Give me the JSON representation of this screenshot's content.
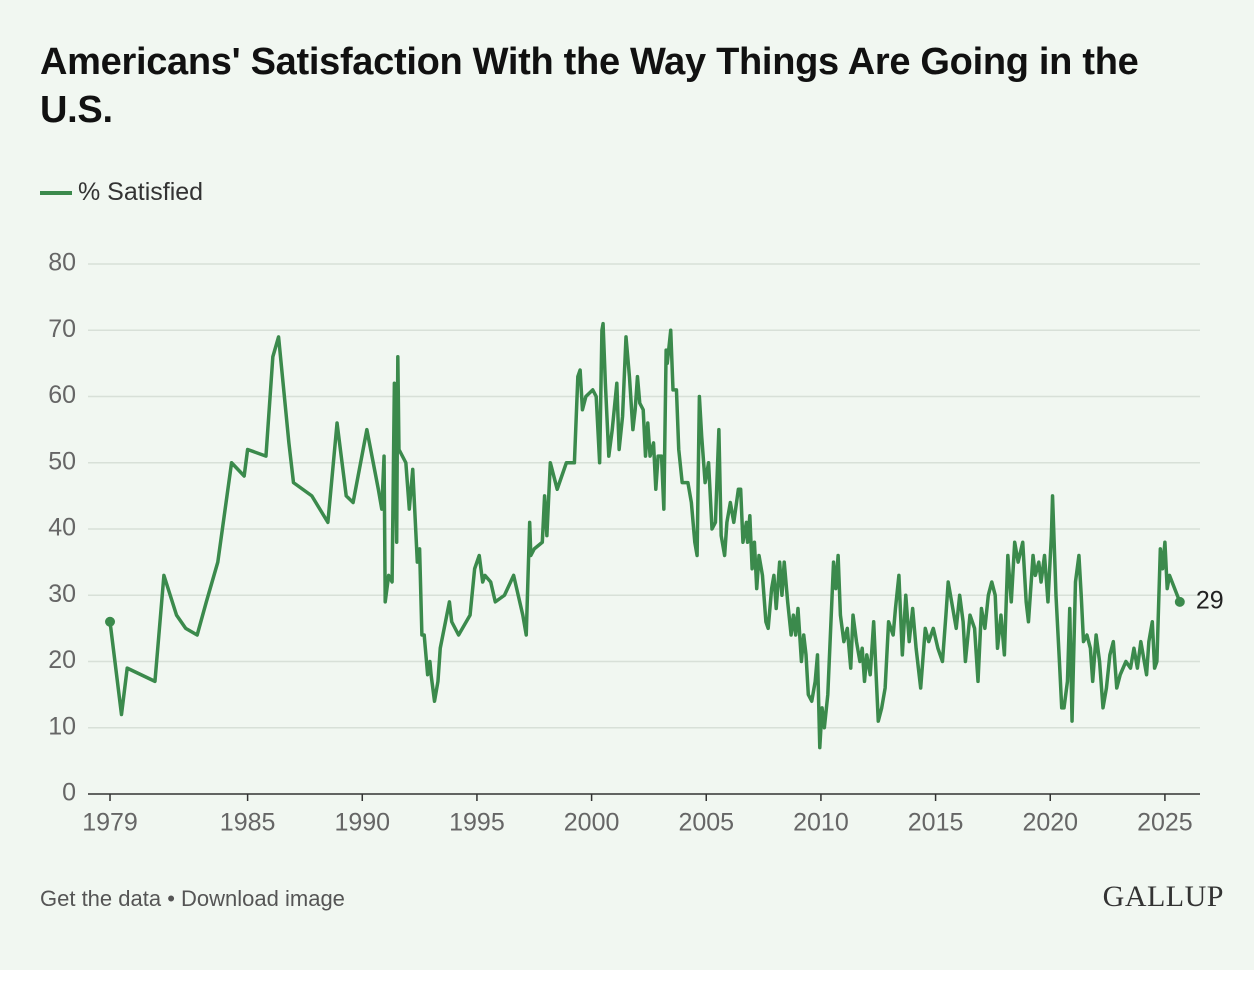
{
  "chart_data": {
    "type": "line",
    "title": "Americans' Satisfaction With the Way Things Are Going in the U.S.",
    "x": [
      1979.0,
      1979.5,
      1979.75,
      1980.96,
      1981.35,
      1981.9,
      1982.3,
      1982.8,
      1983.2,
      1983.7,
      1984.3,
      1984.85,
      1985.0,
      1985.8,
      1986.1,
      1986.35,
      1986.8,
      1987.0,
      1987.8,
      1988.5,
      1988.9,
      1989.3,
      1989.6,
      1990.2,
      1990.7,
      1990.85,
      1990.95,
      1991.0,
      1991.15,
      1991.3,
      1991.4,
      1991.5,
      1991.55,
      1991.6,
      1991.9,
      1992.05,
      1992.2,
      1992.4,
      1992.5,
      1992.6,
      1992.7,
      1992.85,
      1992.95,
      1993.0,
      1993.15,
      1993.3,
      1993.4,
      1993.8,
      1993.9,
      1994.2,
      1994.7,
      1994.9,
      1995.1,
      1995.25,
      1995.35,
      1995.6,
      1995.8,
      1996.2,
      1996.6,
      1997.0,
      1997.15,
      1997.3,
      1997.35,
      1997.5,
      1997.85,
      1997.95,
      1998.05,
      1998.2,
      1998.5,
      1998.9,
      1999.25,
      1999.4,
      1999.5,
      1999.6,
      1999.75,
      2000.05,
      2000.2,
      2000.35,
      2000.45,
      2000.5,
      2000.6,
      2000.75,
      2000.9,
      2001.1,
      2001.2,
      2001.35,
      2001.5,
      2001.65,
      2001.8,
      2001.9,
      2002.0,
      2002.1,
      2002.25,
      2002.35,
      2002.45,
      2002.55,
      2002.7,
      2002.8,
      2002.9,
      2003.05,
      2003.15,
      2003.25,
      2003.3,
      2003.45,
      2003.55,
      2003.7,
      2003.8,
      2003.95,
      2004.2,
      2004.35,
      2004.5,
      2004.6,
      2004.7,
      2004.8,
      2004.95,
      2005.1,
      2005.25,
      2005.4,
      2005.55,
      2005.65,
      2005.8,
      2005.9,
      2006.05,
      2006.2,
      2006.4,
      2006.5,
      2006.6,
      2006.75,
      2006.8,
      2006.9,
      2007.0,
      2007.1,
      2007.2,
      2007.3,
      2007.45,
      2007.6,
      2007.7,
      2007.85,
      2007.95,
      2008.05,
      2008.2,
      2008.3,
      2008.4,
      2008.55,
      2008.7,
      2008.8,
      2008.9,
      2009.0,
      2009.15,
      2009.25,
      2009.35,
      2009.45,
      2009.6,
      2009.75,
      2009.85,
      2009.95,
      2010.05,
      2010.15,
      2010.3,
      2010.55,
      2010.65,
      2010.75,
      2010.85,
      2011.0,
      2011.15,
      2011.3,
      2011.4,
      2011.55,
      2011.7,
      2011.8,
      2011.9,
      2012.0,
      2012.15,
      2012.3,
      2012.5,
      2012.65,
      2012.8,
      2012.95,
      2013.15,
      2013.25,
      2013.4,
      2013.55,
      2013.7,
      2013.85,
      2014.0,
      2014.15,
      2014.35,
      2014.55,
      2014.7,
      2014.9,
      2015.1,
      2015.3,
      2015.45,
      2015.55,
      2015.75,
      2015.9,
      2016.05,
      2016.2,
      2016.3,
      2016.5,
      2016.7,
      2016.85,
      2017.0,
      2017.15,
      2017.3,
      2017.45,
      2017.6,
      2017.7,
      2017.85,
      2018.0,
      2018.15,
      2018.3,
      2018.45,
      2018.6,
      2018.8,
      2018.95,
      2019.05,
      2019.25,
      2019.35,
      2019.5,
      2019.6,
      2019.75,
      2019.9,
      2020.05,
      2020.1,
      2020.25,
      2020.4,
      2020.5,
      2020.6,
      2020.75,
      2020.85,
      2020.95,
      2021.1,
      2021.25,
      2021.35,
      2021.45,
      2021.6,
      2021.75,
      2021.85,
      2022.0,
      2022.15,
      2022.3,
      2022.45,
      2022.6,
      2022.75,
      2022.9,
      2023.05,
      2023.3,
      2023.5,
      2023.65,
      2023.8,
      2023.95,
      2024.1,
      2024.2,
      2024.3,
      2024.45,
      2024.55,
      2024.65,
      2024.8,
      2024.9,
      2025.0,
      2025.1,
      2025.2,
      2025.65
    ],
    "series": [
      {
        "name": "% Satisfied",
        "color": "#3b8a4c",
        "values": [
          26,
          12,
          19,
          17,
          33,
          27,
          25,
          24,
          29,
          35,
          50,
          48,
          52,
          51,
          66,
          69,
          53,
          47,
          45,
          41,
          56,
          45,
          44,
          55,
          46,
          43,
          51,
          29,
          33,
          32,
          62,
          38,
          66,
          52,
          50,
          43,
          49,
          35,
          37,
          24,
          24,
          18,
          20,
          18,
          14,
          17,
          22,
          29,
          26,
          24,
          27,
          34,
          36,
          32,
          33,
          32,
          29,
          30,
          33,
          27,
          24,
          41,
          36,
          37,
          38,
          45,
          39,
          50,
          46,
          50,
          50,
          63,
          64,
          58,
          60,
          61,
          60,
          50,
          70,
          71,
          62,
          51,
          55,
          62,
          52,
          57,
          69,
          63,
          55,
          58,
          63,
          59,
          58,
          51,
          56,
          51,
          53,
          46,
          51,
          51,
          43,
          67,
          65,
          70,
          61,
          61,
          52,
          47,
          47,
          44,
          38,
          36,
          60,
          54,
          47,
          50,
          40,
          41,
          55,
          39,
          36,
          41,
          44,
          41,
          46,
          46,
          38,
          41,
          38,
          42,
          34,
          38,
          31,
          36,
          33,
          26,
          25,
          31,
          33,
          28,
          35,
          30,
          35,
          29,
          24,
          27,
          24,
          28,
          20,
          24,
          21,
          15,
          14,
          17,
          21,
          7,
          13,
          10,
          15,
          35,
          31,
          36,
          27,
          23,
          25,
          19,
          27,
          23,
          20,
          22,
          17,
          21,
          18,
          26,
          11,
          13,
          16,
          26,
          24,
          28,
          33,
          21,
          30,
          23,
          28,
          22,
          16,
          25,
          23,
          25,
          22,
          20,
          27,
          32,
          28,
          25,
          30,
          26,
          20,
          27,
          25,
          17,
          28,
          25,
          30,
          32,
          30,
          22,
          27,
          21,
          36,
          29,
          38,
          35,
          38,
          29,
          26,
          36,
          33,
          35,
          32,
          36,
          29,
          39,
          45,
          30,
          20,
          13,
          13,
          17,
          28,
          11,
          32,
          36,
          30,
          23,
          24,
          22,
          17,
          24,
          20,
          13,
          16,
          21,
          23,
          16,
          18,
          20,
          19,
          22,
          19,
          23,
          20,
          18,
          23,
          26,
          19,
          20,
          37,
          34,
          38,
          31,
          33,
          29
        ]
      }
    ],
    "xlim": [
      1978.04,
      2026.53
    ],
    "xticks": [
      1979,
      1985,
      1990,
      1995,
      2000,
      2005,
      2010,
      2015,
      2020,
      2025
    ],
    "ylim": [
      0,
      80
    ],
    "yticks": [
      0,
      10,
      20,
      30,
      40,
      50,
      60,
      70,
      80
    ],
    "grid": true
  },
  "footer": {
    "links": [
      "Get the data",
      "Download image"
    ],
    "separator": " • ",
    "logo": "GALLUP"
  }
}
